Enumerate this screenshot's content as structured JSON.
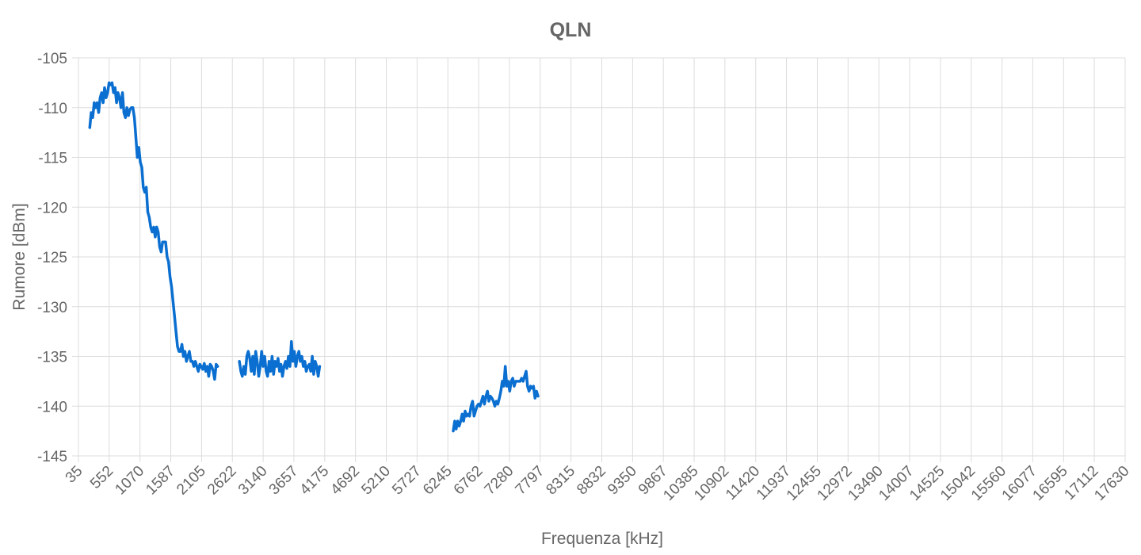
{
  "chart_data": {
    "type": "line",
    "title": "QLN",
    "xlabel": "Frequenza [kHz]",
    "ylabel": "Rumore [dBm]",
    "xlim": [
      35,
      17630
    ],
    "ylim": [
      -145,
      -105
    ],
    "x_tick_values": [
      35,
      552,
      1070,
      1587,
      2105,
      2622,
      3140,
      3657,
      4175,
      4692,
      5210,
      5727,
      6245,
      6762,
      7280,
      7797,
      8315,
      8832,
      9350,
      9867,
      10385,
      10902,
      11420,
      11937,
      12455,
      12972,
      13490,
      14007,
      14525,
      15042,
      15560,
      16077,
      16595,
      17112,
      17630
    ],
    "x_tick_labels": [
      "35",
      "552",
      "1070",
      "1587",
      "2105",
      "2622",
      "3140",
      "3657",
      "4175",
      "4692",
      "5210",
      "5727",
      "6245",
      "6762",
      "7280",
      "7797",
      "8315",
      "8832",
      "9350",
      "9867",
      "10385",
      "10902",
      "11420",
      "11937",
      "12455",
      "12972",
      "13490",
      "14007",
      "14525",
      "15042",
      "15560",
      "16077",
      "16595",
      "17112",
      "17630"
    ],
    "y_ticks": [
      -105,
      -110,
      -115,
      -120,
      -125,
      -130,
      -135,
      -140,
      -145
    ],
    "y_tick_labels": [
      "-105",
      "-110",
      "-115",
      "-120",
      "-125",
      "-130",
      "-135",
      "-140",
      "-145"
    ],
    "grid": true,
    "legend": "none",
    "line_color": "#0a6fd0",
    "series": [
      {
        "segments": [
          [
            [
              225,
              -112
            ],
            [
              250,
              -110.5
            ],
            [
              275,
              -111
            ],
            [
              300,
              -109.5
            ],
            [
              325,
              -110
            ],
            [
              350,
              -109.5
            ],
            [
              375,
              -110.5
            ],
            [
              400,
              -109
            ],
            [
              425,
              -108.5
            ],
            [
              450,
              -109.5
            ],
            [
              475,
              -108
            ],
            [
              500,
              -109
            ],
            [
              525,
              -108.5
            ],
            [
              550,
              -107.5
            ],
            [
              575,
              -107.7
            ],
            [
              600,
              -107.5
            ],
            [
              625,
              -108.5
            ],
            [
              650,
              -108
            ],
            [
              675,
              -109.5
            ],
            [
              700,
              -108.5
            ],
            [
              725,
              -109
            ],
            [
              750,
              -110
            ],
            [
              775,
              -108.5
            ],
            [
              800,
              -110.5
            ],
            [
              825,
              -111
            ],
            [
              850,
              -110
            ],
            [
              875,
              -110.8
            ],
            [
              900,
              -110.2
            ],
            [
              925,
              -110
            ],
            [
              950,
              -110
            ],
            [
              975,
              -111
            ],
            [
              1000,
              -113
            ],
            [
              1025,
              -115
            ],
            [
              1050,
              -114
            ],
            [
              1075,
              -115.5
            ],
            [
              1100,
              -116
            ],
            [
              1125,
              -118
            ],
            [
              1150,
              -118.5
            ],
            [
              1175,
              -118
            ],
            [
              1200,
              -120.5
            ],
            [
              1225,
              -121
            ],
            [
              1250,
              -122
            ],
            [
              1275,
              -122.5
            ],
            [
              1300,
              -122
            ],
            [
              1325,
              -123
            ],
            [
              1350,
              -122
            ],
            [
              1375,
              -122.5
            ],
            [
              1400,
              -124
            ],
            [
              1425,
              -124.5
            ],
            [
              1450,
              -123.5
            ],
            [
              1475,
              -123.5
            ],
            [
              1500,
              -123.5
            ],
            [
              1525,
              -125
            ],
            [
              1550,
              -125.5
            ],
            [
              1575,
              -127
            ],
            [
              1600,
              -128
            ],
            [
              1625,
              -129.5
            ],
            [
              1650,
              -131
            ],
            [
              1675,
              -132.5
            ],
            [
              1700,
              -134
            ],
            [
              1725,
              -134.5
            ],
            [
              1750,
              -134.5
            ],
            [
              1775,
              -133.8
            ],
            [
              1800,
              -135
            ],
            [
              1825,
              -134.5
            ],
            [
              1850,
              -135.5
            ],
            [
              1875,
              -135
            ],
            [
              1900,
              -134.5
            ],
            [
              1925,
              -135.5
            ],
            [
              1950,
              -135.5
            ],
            [
              1975,
              -136
            ],
            [
              2000,
              -135.5
            ],
            [
              2025,
              -136
            ],
            [
              2050,
              -136.5
            ],
            [
              2075,
              -135.8
            ],
            [
              2100,
              -136
            ],
            [
              2125,
              -136.3
            ],
            [
              2150,
              -135.7
            ],
            [
              2175,
              -136.5
            ],
            [
              2200,
              -136
            ],
            [
              2225,
              -137
            ],
            [
              2250,
              -135.8
            ],
            [
              2275,
              -136
            ],
            [
              2300,
              -136.5
            ],
            [
              2325,
              -137.3
            ],
            [
              2350,
              -135.8
            ],
            [
              2375,
              -136
            ]
          ],
          [
            [
              2740,
              -135.5
            ],
            [
              2765,
              -136.5
            ],
            [
              2790,
              -137
            ],
            [
              2815,
              -136
            ],
            [
              2840,
              -136.8
            ],
            [
              2865,
              -135
            ],
            [
              2890,
              -134.5
            ],
            [
              2915,
              -135.2
            ],
            [
              2940,
              -136.5
            ],
            [
              2965,
              -135
            ],
            [
              2990,
              -136.8
            ],
            [
              3015,
              -134.5
            ],
            [
              3040,
              -135.5
            ],
            [
              3065,
              -137
            ],
            [
              3090,
              -136
            ],
            [
              3115,
              -134.5
            ],
            [
              3140,
              -136
            ],
            [
              3165,
              -135
            ],
            [
              3190,
              -136.5
            ],
            [
              3215,
              -137
            ],
            [
              3240,
              -135.5
            ],
            [
              3265,
              -136.5
            ],
            [
              3290,
              -135
            ],
            [
              3315,
              -136.8
            ],
            [
              3340,
              -135.5
            ],
            [
              3365,
              -136
            ],
            [
              3390,
              -135.2
            ],
            [
              3415,
              -136.5
            ],
            [
              3440,
              -135.8
            ],
            [
              3465,
              -137
            ],
            [
              3490,
              -136
            ],
            [
              3515,
              -135.5
            ],
            [
              3540,
              -136.2
            ],
            [
              3565,
              -135
            ],
            [
              3590,
              -136
            ],
            [
              3615,
              -133.5
            ],
            [
              3640,
              -135.5
            ],
            [
              3665,
              -134.5
            ],
            [
              3690,
              -136
            ],
            [
              3715,
              -135
            ],
            [
              3740,
              -134.5
            ],
            [
              3765,
              -135.5
            ],
            [
              3790,
              -135
            ],
            [
              3815,
              -136
            ],
            [
              3840,
              -135.5
            ],
            [
              3865,
              -136.5
            ],
            [
              3890,
              -136
            ],
            [
              3915,
              -135.8
            ],
            [
              3940,
              -136.5
            ],
            [
              3965,
              -135
            ],
            [
              3990,
              -136.8
            ],
            [
              4015,
              -135.5
            ],
            [
              4040,
              -136
            ],
            [
              4065,
              -137
            ],
            [
              4090,
              -136
            ]
          ],
          [
            [
              6335,
              -142.5
            ],
            [
              6360,
              -141.5
            ],
            [
              6385,
              -142.3
            ],
            [
              6410,
              -141.5
            ],
            [
              6435,
              -142
            ],
            [
              6460,
              -141.5
            ],
            [
              6485,
              -140.8
            ],
            [
              6510,
              -141.5
            ],
            [
              6535,
              -140.5
            ],
            [
              6560,
              -141
            ],
            [
              6585,
              -140.8
            ],
            [
              6610,
              -141
            ],
            [
              6635,
              -140
            ],
            [
              6660,
              -139.5
            ],
            [
              6685,
              -141
            ],
            [
              6710,
              -140.5
            ],
            [
              6735,
              -140
            ],
            [
              6760,
              -139.8
            ],
            [
              6785,
              -140
            ],
            [
              6810,
              -139.5
            ],
            [
              6835,
              -139
            ],
            [
              6860,
              -139.8
            ],
            [
              6885,
              -139
            ],
            [
              6910,
              -138.5
            ],
            [
              6935,
              -139.5
            ],
            [
              6960,
              -139
            ],
            [
              6985,
              -139.2
            ],
            [
              7010,
              -139.5
            ],
            [
              7035,
              -140
            ],
            [
              7060,
              -139.5
            ],
            [
              7085,
              -139.8
            ],
            [
              7110,
              -139.2
            ],
            [
              7135,
              -138.5
            ],
            [
              7160,
              -137.5
            ],
            [
              7185,
              -138
            ],
            [
              7210,
              -136
            ],
            [
              7235,
              -138
            ],
            [
              7260,
              -137.5
            ],
            [
              7285,
              -138.5
            ],
            [
              7310,
              -137.5
            ],
            [
              7335,
              -137.2
            ],
            [
              7360,
              -138
            ],
            [
              7385,
              -137.5
            ],
            [
              7410,
              -137.5
            ],
            [
              7435,
              -137.5
            ],
            [
              7460,
              -137.5
            ],
            [
              7485,
              -137.2
            ],
            [
              7510,
              -137.5
            ],
            [
              7535,
              -137
            ],
            [
              7560,
              -136.5
            ],
            [
              7585,
              -138
            ],
            [
              7610,
              -138.5
            ],
            [
              7635,
              -138
            ],
            [
              7660,
              -138.2
            ],
            [
              7685,
              -138
            ],
            [
              7710,
              -139.2
            ],
            [
              7735,
              -138.5
            ],
            [
              7760,
              -139
            ]
          ]
        ]
      }
    ]
  }
}
